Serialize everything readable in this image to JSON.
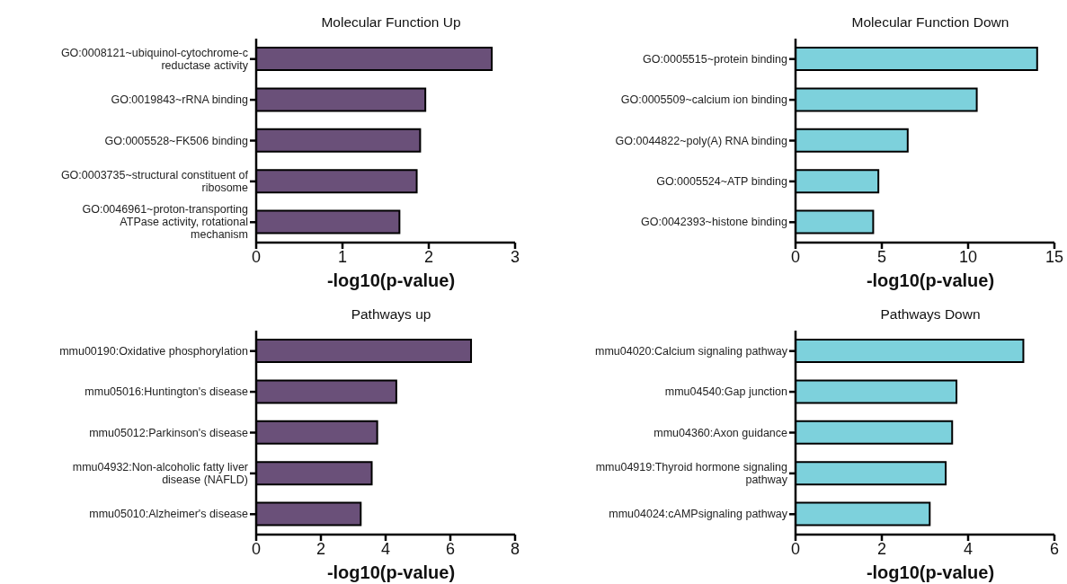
{
  "chart_data": [
    {
      "type": "bar",
      "orientation": "horizontal",
      "title": "Molecular Function Up",
      "xlabel": "-log10(p-value)",
      "categories": [
        "GO:0008121~ubiquinol-cytochrome-c reductase activity",
        "GO:0019843~rRNA binding",
        "GO:0005528~FK506 binding",
        "GO:0003735~structural constituent of ribosome",
        "GO:0046961~proton-transporting ATPase activity, rotational mechanism"
      ],
      "values": [
        2.73,
        1.96,
        1.9,
        1.86,
        1.66
      ],
      "color": "#6a5079",
      "xlim": [
        0,
        3
      ],
      "xticks": [
        0,
        1,
        2,
        3
      ]
    },
    {
      "type": "bar",
      "orientation": "horizontal",
      "title": "Molecular Function Down",
      "xlabel": "-log10(p-value)",
      "categories": [
        "GO:0005515~protein binding",
        "GO:0005509~calcium ion binding",
        "GO:0044822~poly(A) RNA binding",
        "GO:0005524~ATP binding",
        "GO:0042393~histone binding"
      ],
      "values": [
        14,
        10.5,
        6.5,
        4.8,
        4.5
      ],
      "color": "#7dd1dc",
      "xlim": [
        0,
        15
      ],
      "xticks": [
        0,
        5,
        10,
        15
      ]
    },
    {
      "type": "bar",
      "orientation": "horizontal",
      "title": "Pathways up",
      "xlabel": "-log10(p-value)",
      "categories": [
        "mmu00190:Oxidative phosphorylation",
        "mmu05016:Huntington's disease",
        "mmu05012:Parkinson's disease",
        "mmu04932:Non-alcoholic fatty liver disease (NAFLD)",
        "mmu05010:Alzheimer's disease"
      ],
      "values": [
        6.64,
        4.33,
        3.74,
        3.57,
        3.23
      ],
      "color": "#6a5079",
      "xlim": [
        0,
        8
      ],
      "xticks": [
        0,
        2,
        4,
        6,
        8
      ]
    },
    {
      "type": "bar",
      "orientation": "horizontal",
      "title": "Pathways Down",
      "xlabel": "-log10(p-value)",
      "categories": [
        "mmu04020:Calcium signaling pathway",
        "mmu04540:Gap junction",
        "mmu04360:Axon guidance",
        "mmu04919:Thyroid hormone signaling pathway",
        "mmu04024:cAMPsignaling pathway"
      ],
      "values": [
        5.28,
        3.73,
        3.63,
        3.48,
        3.11
      ],
      "color": "#7dd1dc",
      "xlim": [
        0,
        6
      ],
      "xticks": [
        0,
        2,
        4,
        6
      ]
    }
  ]
}
